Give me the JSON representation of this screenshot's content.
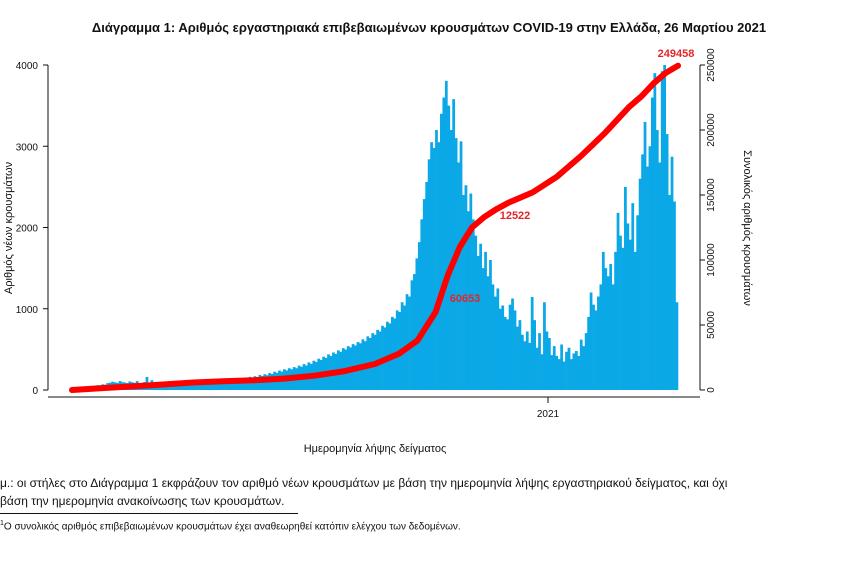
{
  "chart_data": {
    "type": "bar",
    "title": "Διάγραμμα 1: Αριθμός εργαστηριακά επιβεβαιωμένων κρουσμάτων COVID-19 στην Ελλάδα, 26 Μαρτίου 2021",
    "xlabel": "Ημερομηνία λήψης δείγματος",
    "ylabel": "Αριθμός νέων κρουσμάτων",
    "y2label": "Συνολικός αριθμός κρουσμάτων",
    "ylim": [
      0,
      4000
    ],
    "y2lim": [
      0,
      250000
    ],
    "yticks": [
      0,
      1000,
      2000,
      3000,
      4000
    ],
    "y2ticks": [
      0,
      50000,
      100000,
      150000,
      200000,
      250000
    ],
    "xtick_labels": [
      "2021"
    ],
    "colors": {
      "bars": "#0aa8e6",
      "cumulative": "#ff0000"
    },
    "series": [
      {
        "type": "bar",
        "values": [
          8,
          12,
          14,
          18,
          22,
          28,
          35,
          40,
          48,
          52,
          60,
          55,
          70,
          65,
          85,
          90,
          102,
          95,
          88,
          110,
          96,
          92,
          85,
          105,
          95,
          88,
          110,
          80,
          75,
          98,
          161,
          90,
          120,
          85,
          70,
          92,
          88,
          75,
          84,
          68,
          92,
          71,
          79,
          62,
          74,
          70,
          80,
          66,
          82,
          74,
          78,
          71,
          88,
          76,
          96,
          82,
          84,
          90,
          104,
          88,
          110,
          102,
          118,
          98,
          124,
          110,
          125,
          116,
          140,
          120,
          150,
          138,
          162,
          148,
          170,
          158,
          185,
          172,
          194,
          182,
          210,
          198,
          225,
          212,
          240,
          226,
          255,
          241,
          268,
          255,
          282,
          268,
          300,
          286,
          318,
          302,
          340,
          322,
          360,
          345,
          385,
          370,
          410,
          395,
          438,
          420,
          462,
          445,
          488,
          470,
          515,
          498,
          540,
          524,
          565,
          548,
          590,
          575,
          624,
          600,
          660,
          640,
          700,
          680,
          740,
          720,
          790,
          770,
          840,
          820,
          900,
          880,
          980,
          960,
          1080,
          1040,
          1180,
          1150,
          1350,
          1427,
          1620,
          1820,
          2100,
          2350,
          2560,
          2839,
          3050,
          2980,
          3200,
          3050,
          3400,
          3600,
          3805,
          3500,
          3200,
          3580,
          3100,
          2800,
          3060,
          2400,
          2520,
          2200,
          2418,
          2100,
          1900,
          1650,
          1800,
          1500,
          1700,
          1400,
          1600,
          1300,
          1150,
          1250,
          1000,
          1040,
          900,
          870,
          1050,
          1126,
          980,
          780,
          860,
          680,
          600,
          720,
          580,
          1145,
          860,
          520,
          700,
          440,
          1080,
          720,
          640,
          430,
          540,
          420,
          380,
          560,
          350,
          470,
          520,
          380,
          450,
          480,
          420,
          620,
          540,
          700,
          900,
          1200,
          1050,
          980,
          1150,
          1300,
          1700,
          1500,
          1400,
          1550,
          1300,
          1700,
          2180,
          1900,
          1750,
          2500,
          2050,
          1850,
          2300,
          1700,
          2150,
          2600,
          2900,
          3300,
          2750,
          3000,
          3600,
          3900,
          3200,
          2800,
          3924,
          4000,
          3150,
          2400,
          2871,
          2320,
          1080
        ]
      },
      {
        "type": "line",
        "name": "cumulative",
        "x_frac": [
          0,
          0.05,
          0.1,
          0.15,
          0.2,
          0.25,
          0.3,
          0.35,
          0.4,
          0.45,
          0.5,
          0.54,
          0.57,
          0.6,
          0.62,
          0.64,
          0.66,
          0.68,
          0.7,
          0.72,
          0.74,
          0.76,
          0.78,
          0.8,
          0.82,
          0.84,
          0.86,
          0.88,
          0.9,
          0.92,
          0.94,
          0.96,
          0.98,
          1.0
        ],
        "values": [
          0,
          1500,
          2800,
          4200,
          5800,
          6800,
          7500,
          8800,
          11000,
          14500,
          20000,
          28000,
          38000,
          60000,
          88000,
          110000,
          125000,
          133000,
          139000,
          144000,
          148000,
          152000,
          158000,
          164000,
          172000,
          180000,
          189000,
          198000,
          208000,
          218000,
          226000,
          236000,
          244000,
          249458
        ]
      }
    ],
    "annotations": [
      "249458",
      "12522",
      "60653"
    ]
  },
  "note": {
    "line1": "μ.: οι στήλες στο Διάγραμμα 1 εκφράζουν τον αριθμό νέων κρουσμάτων με βάση την ημερομηνία λήψης εργαστηριακού δείγματος, και όχι",
    "line2": "βάση την ημερομηνία ανακοίνωσης των κρουσμάτων.",
    "footnote_mark": "1",
    "footnote": "Ο συνολικός αριθμός επιβεβαιωμένων κρουσμάτων έχει αναθεωρηθεί κατόπιν ελέγχου των δεδομένων."
  }
}
